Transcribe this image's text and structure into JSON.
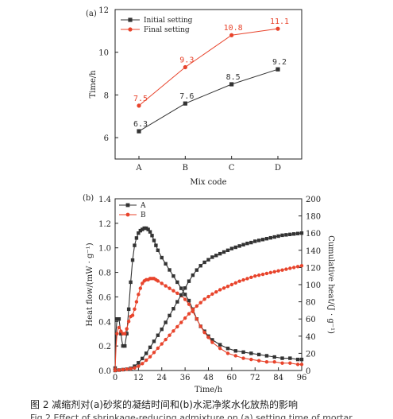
{
  "chart_data": [
    {
      "type": "line",
      "panel_label": "(a)",
      "xlabel": "Mix code",
      "ylabel": "Time/h",
      "categories": [
        "A",
        "B",
        "C",
        "D"
      ],
      "ylim": [
        5,
        12
      ],
      "yticks": [
        "6",
        "8",
        "10",
        "12"
      ],
      "legend_position": "top-left",
      "series": [
        {
          "name": "Initial setting",
          "values": [
            6.3,
            7.6,
            8.5,
            9.2
          ],
          "labels": [
            "6.3",
            "7.6",
            "8.5",
            "9.2"
          ],
          "color": "#333333",
          "marker": "square"
        },
        {
          "name": "Final setting",
          "values": [
            7.5,
            9.3,
            10.8,
            11.1
          ],
          "labels": [
            "7.5",
            "9.3",
            "10.8",
            "11.1"
          ],
          "color": "#e8442c",
          "marker": "circle"
        }
      ]
    },
    {
      "type": "line",
      "panel_label": "(b)",
      "xlabel": "Time/h",
      "ylabel": "Heat flow/(mW · g⁻¹)",
      "ylabel_right": "Cumulative heat/(J · g⁻¹)",
      "xlim": [
        0,
        96
      ],
      "xticks": [
        "0",
        "12",
        "24",
        "36",
        "48",
        "60",
        "72",
        "84",
        "96"
      ],
      "ylim": [
        0,
        1.4
      ],
      "yticks": [
        "0.0",
        "0.2",
        "0.4",
        "0.6",
        "0.8",
        "1.0",
        "1.2",
        "1.4"
      ],
      "ylim_right": [
        0,
        200
      ],
      "yticks_right": [
        "0",
        "20",
        "40",
        "60",
        "80",
        "100",
        "120",
        "140",
        "160",
        "180",
        "200"
      ],
      "legend_position": "top-left",
      "series": [
        {
          "name": "A",
          "axis": "left",
          "color": "#333333",
          "marker": "square",
          "x": [
            0,
            0.5,
            1,
            1.5,
            2,
            2.5,
            3,
            3.5,
            4,
            5,
            6,
            7,
            8,
            9,
            10,
            11,
            12,
            13,
            14,
            15,
            16,
            17,
            18,
            19,
            20,
            21,
            22,
            24,
            26,
            28,
            30,
            32,
            34,
            36,
            38,
            40,
            42,
            44,
            46,
            48,
            50,
            54,
            58,
            62,
            66,
            70,
            74,
            78,
            82,
            86,
            90,
            94,
            96
          ],
          "y": [
            0.02,
            0.32,
            0.42,
            0.43,
            0.42,
            0.36,
            0.3,
            0.24,
            0.2,
            0.2,
            0.3,
            0.5,
            0.72,
            0.9,
            1.02,
            1.08,
            1.12,
            1.14,
            1.15,
            1.16,
            1.16,
            1.15,
            1.13,
            1.1,
            1.06,
            1.02,
            0.98,
            0.92,
            0.87,
            0.82,
            0.77,
            0.72,
            0.67,
            0.62,
            0.57,
            0.5,
            0.42,
            0.36,
            0.32,
            0.28,
            0.25,
            0.21,
            0.18,
            0.16,
            0.15,
            0.14,
            0.13,
            0.12,
            0.11,
            0.1,
            0.1,
            0.09,
            0.09
          ]
        },
        {
          "name": "B",
          "axis": "left",
          "color": "#e8442c",
          "marker": "circle",
          "x": [
            0,
            0.5,
            1,
            1.5,
            2,
            2.5,
            3,
            4,
            5,
            6,
            7,
            8,
            9,
            10,
            11,
            12,
            13,
            14,
            15,
            16,
            17,
            18,
            19,
            20,
            21,
            22,
            24,
            26,
            28,
            30,
            32,
            34,
            36,
            38,
            40,
            42,
            44,
            46,
            48,
            50,
            54,
            58,
            62,
            66,
            70,
            74,
            78,
            82,
            86,
            90,
            94,
            96
          ],
          "y": [
            0.01,
            0.2,
            0.3,
            0.34,
            0.35,
            0.34,
            0.32,
            0.3,
            0.3,
            0.34,
            0.4,
            0.44,
            0.45,
            0.5,
            0.56,
            0.62,
            0.67,
            0.71,
            0.73,
            0.74,
            0.74,
            0.75,
            0.75,
            0.75,
            0.74,
            0.73,
            0.71,
            0.69,
            0.67,
            0.65,
            0.63,
            0.61,
            0.58,
            0.54,
            0.48,
            0.42,
            0.36,
            0.31,
            0.27,
            0.23,
            0.18,
            0.14,
            0.12,
            0.1,
            0.09,
            0.08,
            0.07,
            0.07,
            0.06,
            0.06,
            0.05,
            0.05
          ]
        },
        {
          "name": "A",
          "axis": "right",
          "color": "#333333",
          "marker": "square",
          "x": [
            0,
            2,
            4,
            6,
            8,
            10,
            12,
            14,
            16,
            18,
            20,
            22,
            24,
            26,
            28,
            30,
            32,
            34,
            36,
            38,
            40,
            42,
            44,
            46,
            48,
            50,
            52,
            54,
            56,
            58,
            60,
            62,
            64,
            66,
            68,
            70,
            72,
            74,
            76,
            78,
            80,
            82,
            84,
            86,
            88,
            90,
            92,
            94,
            96
          ],
          "y": [
            0,
            0.5,
            1,
            1.5,
            2.5,
            5,
            9,
            14,
            20,
            27,
            34,
            41,
            48,
            56,
            64,
            72,
            80,
            88,
            96,
            104,
            111,
            117,
            122,
            126,
            129,
            132,
            134,
            136,
            138,
            140,
            142,
            143.5,
            145,
            146.5,
            148,
            149,
            150.5,
            151.5,
            152.5,
            153.5,
            154.5,
            155.5,
            156.5,
            157.5,
            158,
            158.5,
            159,
            159.5,
            160
          ]
        },
        {
          "name": "B",
          "axis": "right",
          "color": "#e8442c",
          "marker": "circle",
          "x": [
            0,
            2,
            4,
            6,
            8,
            10,
            12,
            14,
            16,
            18,
            20,
            22,
            24,
            26,
            28,
            30,
            32,
            34,
            36,
            38,
            40,
            42,
            44,
            46,
            48,
            50,
            52,
            54,
            56,
            58,
            60,
            62,
            64,
            66,
            68,
            70,
            72,
            74,
            76,
            78,
            80,
            82,
            84,
            86,
            88,
            90,
            92,
            94,
            96
          ],
          "y": [
            0,
            0.5,
            1,
            1.5,
            2,
            3,
            5,
            8,
            12,
            16,
            21,
            26,
            31,
            36,
            41,
            46,
            51,
            56,
            61,
            66,
            71,
            75,
            79,
            83,
            86,
            89,
            91.5,
            94,
            96,
            98,
            100,
            102,
            104,
            105.5,
            107,
            108.5,
            110,
            111,
            112,
            113,
            114,
            115,
            116,
            117,
            118,
            119,
            120,
            121,
            122
          ]
        }
      ]
    }
  ],
  "caption": {
    "line1": "图 2   减缩剂对(a)砂浆的凝结时间和(b)水泥净浆水化放热的影响",
    "line2": "Fig.2   Effect of shrinkage-reducing admixture on (a) setting time of mortar"
  }
}
